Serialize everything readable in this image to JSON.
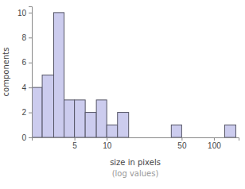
{
  "chart_data": {
    "type": "histogram",
    "x_label": "size in pixels",
    "y_label": "components",
    "annotations": [
      "(log values)"
    ],
    "bins": [
      2,
      2.5,
      3.2,
      4,
      5,
      6.3,
      8,
      10,
      12.6,
      16,
      20,
      25,
      32,
      40,
      50,
      63,
      80,
      100,
      126,
      160
    ],
    "values": [
      4,
      5,
      10,
      3,
      3,
      2,
      3,
      1,
      2,
      0,
      0,
      0,
      0,
      1,
      0,
      0,
      0,
      0,
      1
    ],
    "color": "#ccccee",
    "log": "x",
    "xlim": [
      2,
      170
    ],
    "xticks": [
      5,
      10,
      50,
      100
    ],
    "ylim": [
      0,
      10.5
    ],
    "yticks": [
      0,
      2,
      4,
      6,
      8,
      10
    ],
    "grid": false
  }
}
